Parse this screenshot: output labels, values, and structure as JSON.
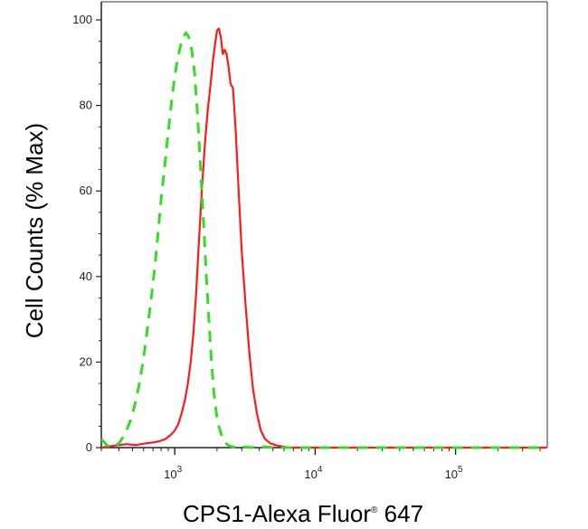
{
  "chart_data": {
    "type": "line",
    "xlabel": "CPS1-Alexa Fluor",
    "xlabel_superscript": "®",
    "xlabel_suffix": " 647",
    "ylabel": "Cell Counts (% Max)",
    "x_scale": "log",
    "xlim": [
      300,
      450000
    ],
    "ylim": [
      0,
      100
    ],
    "x_ticks": [
      {
        "value": 1000,
        "base": "10",
        "exp": "3"
      },
      {
        "value": 10000,
        "base": "10",
        "exp": "4"
      },
      {
        "value": 100000,
        "base": "10",
        "exp": "5"
      }
    ],
    "y_ticks": [
      "0",
      "20",
      "40",
      "60",
      "80",
      "100"
    ],
    "grid": false,
    "legend": "none",
    "series": [
      {
        "color": "#ff1a1a",
        "style": "solid",
        "x": [
          300,
          380,
          450,
          530,
          620,
          700,
          780,
          860,
          940,
          1000,
          1060,
          1120,
          1180,
          1240,
          1300,
          1360,
          1420,
          1480,
          1560,
          1640,
          1720,
          1800,
          1880,
          1950,
          2000,
          2060,
          2130,
          2200,
          2270,
          2340,
          2420,
          2500,
          2600,
          2720,
          2850,
          3000,
          3200,
          3400,
          3600,
          3850,
          4100,
          4400,
          4800,
          5300,
          5800,
          6500,
          450000
        ],
        "y": [
          0,
          0.5,
          0.8,
          0.6,
          1.0,
          1.2,
          1.5,
          2.0,
          3.0,
          4.0,
          5.5,
          8.0,
          11,
          15,
          20,
          27,
          36,
          47,
          60,
          71,
          79,
          85,
          91,
          95,
          97.5,
          98,
          96,
          92,
          93,
          92,
          89,
          85,
          84,
          74,
          60,
          46,
          33,
          22,
          14,
          8,
          4,
          2,
          1,
          0.5,
          0.3,
          0,
          0
        ]
      },
      {
        "color": "#33dd22",
        "style": "dashed",
        "x": [
          300,
          330,
          360,
          400,
          440,
          480,
          520,
          560,
          600,
          640,
          680,
          720,
          760,
          800,
          850,
          900,
          950,
          1000,
          1050,
          1100,
          1150,
          1200,
          1260,
          1320,
          1380,
          1440,
          1500,
          1560,
          1620,
          1680,
          1750,
          1820,
          1900,
          1980,
          2060,
          2150,
          2250,
          2350,
          2450,
          2600,
          2800,
          3100,
          3500,
          4000,
          5000,
          450000
        ],
        "y": [
          2,
          0.5,
          0,
          1,
          3,
          6,
          10,
          15,
          21,
          28,
          35,
          42,
          50,
          58,
          66,
          74,
          81,
          87,
          91,
          94,
          96,
          97,
          96,
          93,
          88,
          80,
          70,
          60,
          50,
          40,
          30,
          21,
          13,
          8,
          5,
          3,
          1.5,
          0.8,
          0.4,
          0.2,
          0,
          0.2,
          0,
          0.3,
          0,
          0
        ]
      }
    ]
  }
}
